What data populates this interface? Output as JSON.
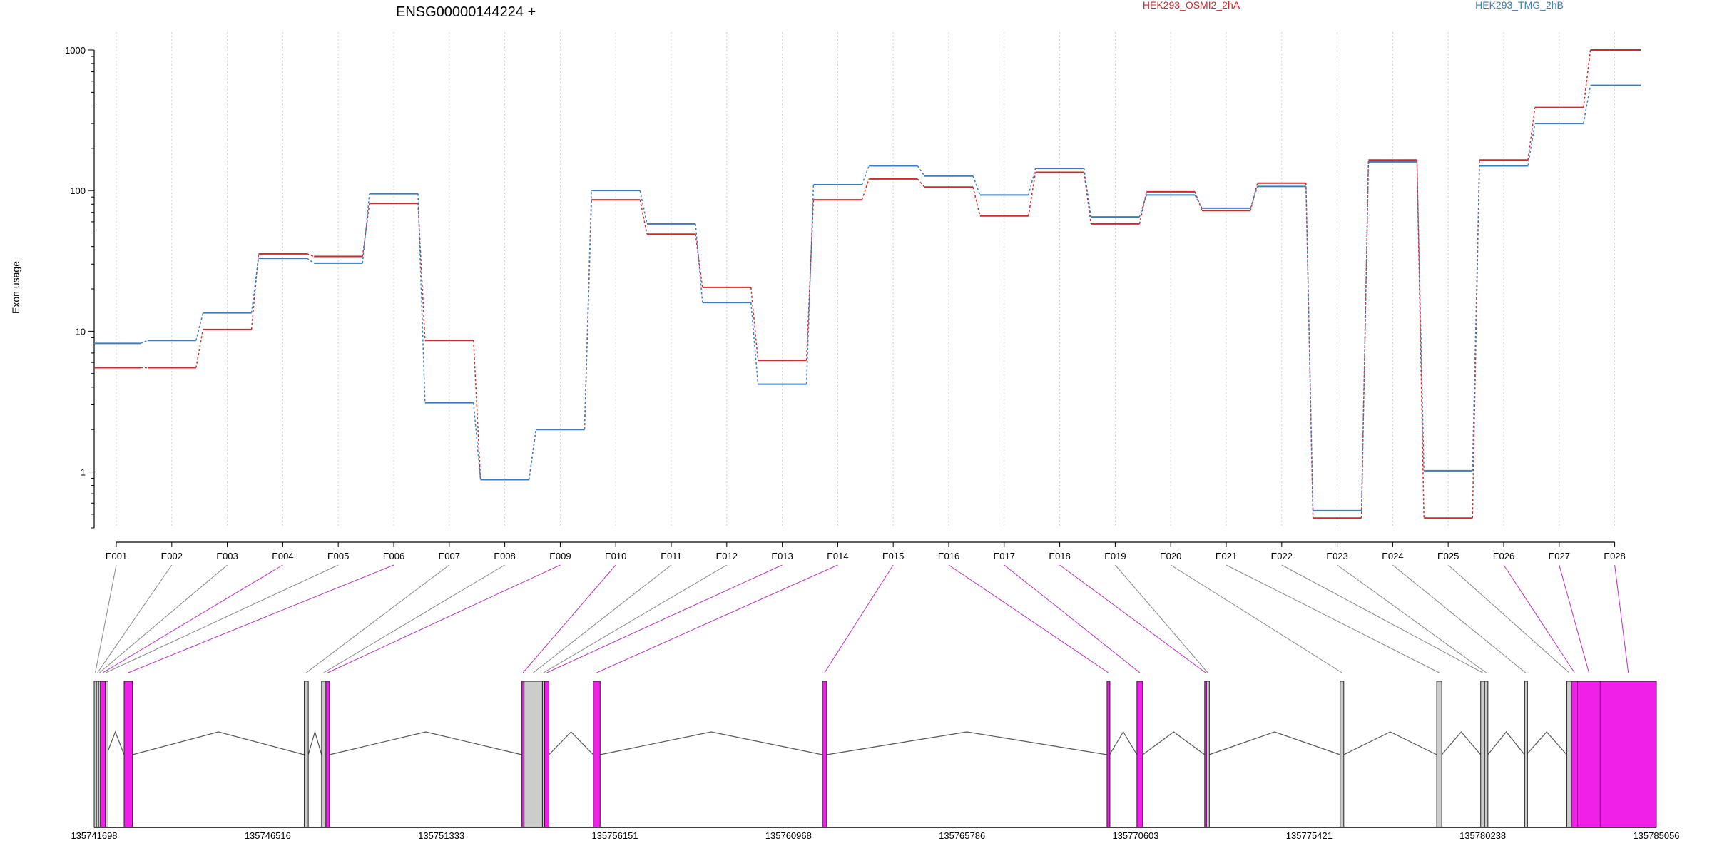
{
  "chart_data": {
    "type": "line",
    "title": "ENSG00000144224 +",
    "ylabel": "Exon usage",
    "yscale": "log",
    "ylim": [
      0.4,
      1000
    ],
    "y_ticks": [
      "1",
      "10",
      "100",
      "1000"
    ],
    "grid": "vertical-dotted",
    "legend_position": "top",
    "categories": [
      "E001",
      "E002",
      "E003",
      "E004",
      "E005",
      "E006",
      "E007",
      "E008",
      "E009",
      "E010",
      "E011",
      "E012",
      "E013",
      "E014",
      "E015",
      "E016",
      "E017",
      "E018",
      "E019",
      "E020",
      "E021",
      "E022",
      "E023",
      "E024",
      "E025",
      "E026",
      "E027",
      "E028"
    ],
    "series": [
      {
        "name": "HEK293_OSMI2_2hA",
        "color": "#d62728",
        "values": [
          5.5,
          5.5,
          10.3,
          35.5,
          34,
          81,
          8.6,
          0.88,
          2.0,
          86,
          49,
          20.5,
          6.2,
          86,
          121,
          106,
          66,
          135,
          58,
          98,
          72,
          113,
          0.47,
          165,
          0.47,
          165,
          390,
          1000
        ]
      },
      {
        "name": "HEK293_TMG_2hB",
        "color": "#3a7cc1",
        "values": [
          8.2,
          8.6,
          13.5,
          33,
          30.5,
          95,
          3.1,
          0.88,
          2.0,
          100,
          58,
          16,
          4.2,
          110,
          150,
          127,
          93,
          144,
          65,
          93,
          75,
          107,
          0.53,
          160,
          1.02,
          150,
          300,
          560
        ]
      }
    ],
    "gene_model": {
      "coordinates": [
        "135741698",
        "135746516",
        "135751333",
        "135756151",
        "135760968",
        "135765786",
        "135770603",
        "135775421",
        "135780238",
        "135785056"
      ],
      "exons": [
        {
          "id": "E001",
          "start": 135741698,
          "end": 135741760,
          "significant": false
        },
        {
          "id": "E002",
          "start": 135741760,
          "end": 135741820,
          "significant": false
        },
        {
          "id": "E003",
          "start": 135741820,
          "end": 135741870,
          "significant": false
        },
        {
          "id": "E004",
          "start": 135741870,
          "end": 135742005,
          "significant": true
        },
        {
          "id": "E005",
          "start": 135742005,
          "end": 135742040,
          "significant": false
        },
        {
          "id": "E006",
          "start": 135742530,
          "end": 135742760,
          "significant": true
        },
        {
          "id": "E007",
          "start": 135747530,
          "end": 135747640,
          "significant": false
        },
        {
          "id": "E008",
          "start": 135748010,
          "end": 135748130,
          "significant": false
        },
        {
          "id": "E009",
          "start": 135748130,
          "end": 135748230,
          "significant": true
        },
        {
          "id": "E010",
          "start": 135753570,
          "end": 135753630,
          "significant": true
        },
        {
          "id": "E011",
          "start": 135753630,
          "end": 135754140,
          "significant": false
        },
        {
          "id": "E012",
          "start": 135754140,
          "end": 135754200,
          "significant": false
        },
        {
          "id": "E013",
          "start": 135754200,
          "end": 135754320,
          "significant": true
        },
        {
          "id": "E014",
          "start": 135755550,
          "end": 135755740,
          "significant": true
        },
        {
          "id": "E015",
          "start": 135761910,
          "end": 135762030,
          "significant": true
        },
        {
          "id": "E016",
          "start": 135769810,
          "end": 135769880,
          "significant": true
        },
        {
          "id": "E017",
          "start": 135770640,
          "end": 135770800,
          "significant": true
        },
        {
          "id": "E018",
          "start": 135772520,
          "end": 135772570,
          "significant": true
        },
        {
          "id": "E019",
          "start": 135772570,
          "end": 135772640,
          "significant": false
        },
        {
          "id": "E020",
          "start": 135776280,
          "end": 135776380,
          "significant": false
        },
        {
          "id": "E021",
          "start": 135778960,
          "end": 135779100,
          "significant": false
        },
        {
          "id": "E022",
          "start": 135780180,
          "end": 135780290,
          "significant": false
        },
        {
          "id": "E023",
          "start": 135780290,
          "end": 135780380,
          "significant": false
        },
        {
          "id": "E024",
          "start": 135781400,
          "end": 135781450,
          "significant": false
        },
        {
          "id": "E025",
          "start": 135782570,
          "end": 135782700,
          "significant": false
        },
        {
          "id": "E026",
          "start": 135782700,
          "end": 135782870,
          "significant": true
        },
        {
          "id": "E027",
          "start": 135782870,
          "end": 135783500,
          "significant": true
        },
        {
          "id": "E028",
          "start": 135783500,
          "end": 135785056,
          "significant": true
        }
      ]
    }
  }
}
